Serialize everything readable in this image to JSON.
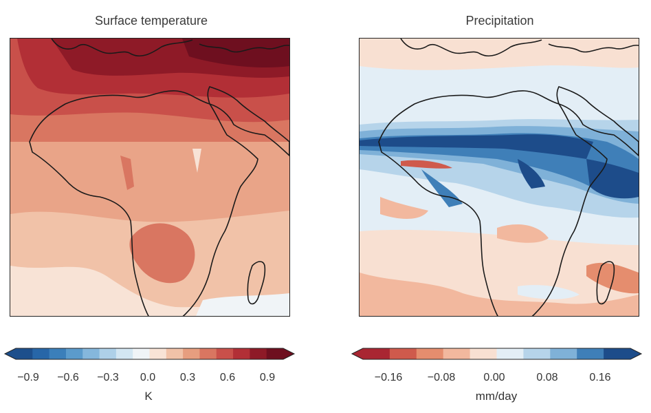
{
  "panels": [
    {
      "title": "Surface temperature",
      "colorbar": {
        "ticks": [
          "−0.9",
          "−0.6",
          "−0.3",
          "0.0",
          "0.3",
          "0.6",
          "0.9"
        ],
        "unit": "K",
        "colors": [
          "#1d4f8c",
          "#2766a8",
          "#3b7fba",
          "#5b9bcc",
          "#85b7dc",
          "#aed0e8",
          "#d3e6f2",
          "#f0f4f7",
          "#f8e3d6",
          "#f1c2a8",
          "#e79e7f",
          "#d97661",
          "#c9504a",
          "#b22f36",
          "#8e1a27",
          "#6e0f1f"
        ]
      }
    },
    {
      "title": "Precipitation",
      "colorbar": {
        "ticks": [
          "−0.16",
          "−0.08",
          "0.00",
          "0.08",
          "0.16"
        ],
        "unit": "mm/day",
        "colors": [
          "#a92632",
          "#cf5a4c",
          "#e58d6e",
          "#f2b89e",
          "#f8e0d2",
          "#e3eef6",
          "#b6d4ea",
          "#7fb1d8",
          "#3f7fb8",
          "#1d4c8a"
        ]
      }
    }
  ]
}
